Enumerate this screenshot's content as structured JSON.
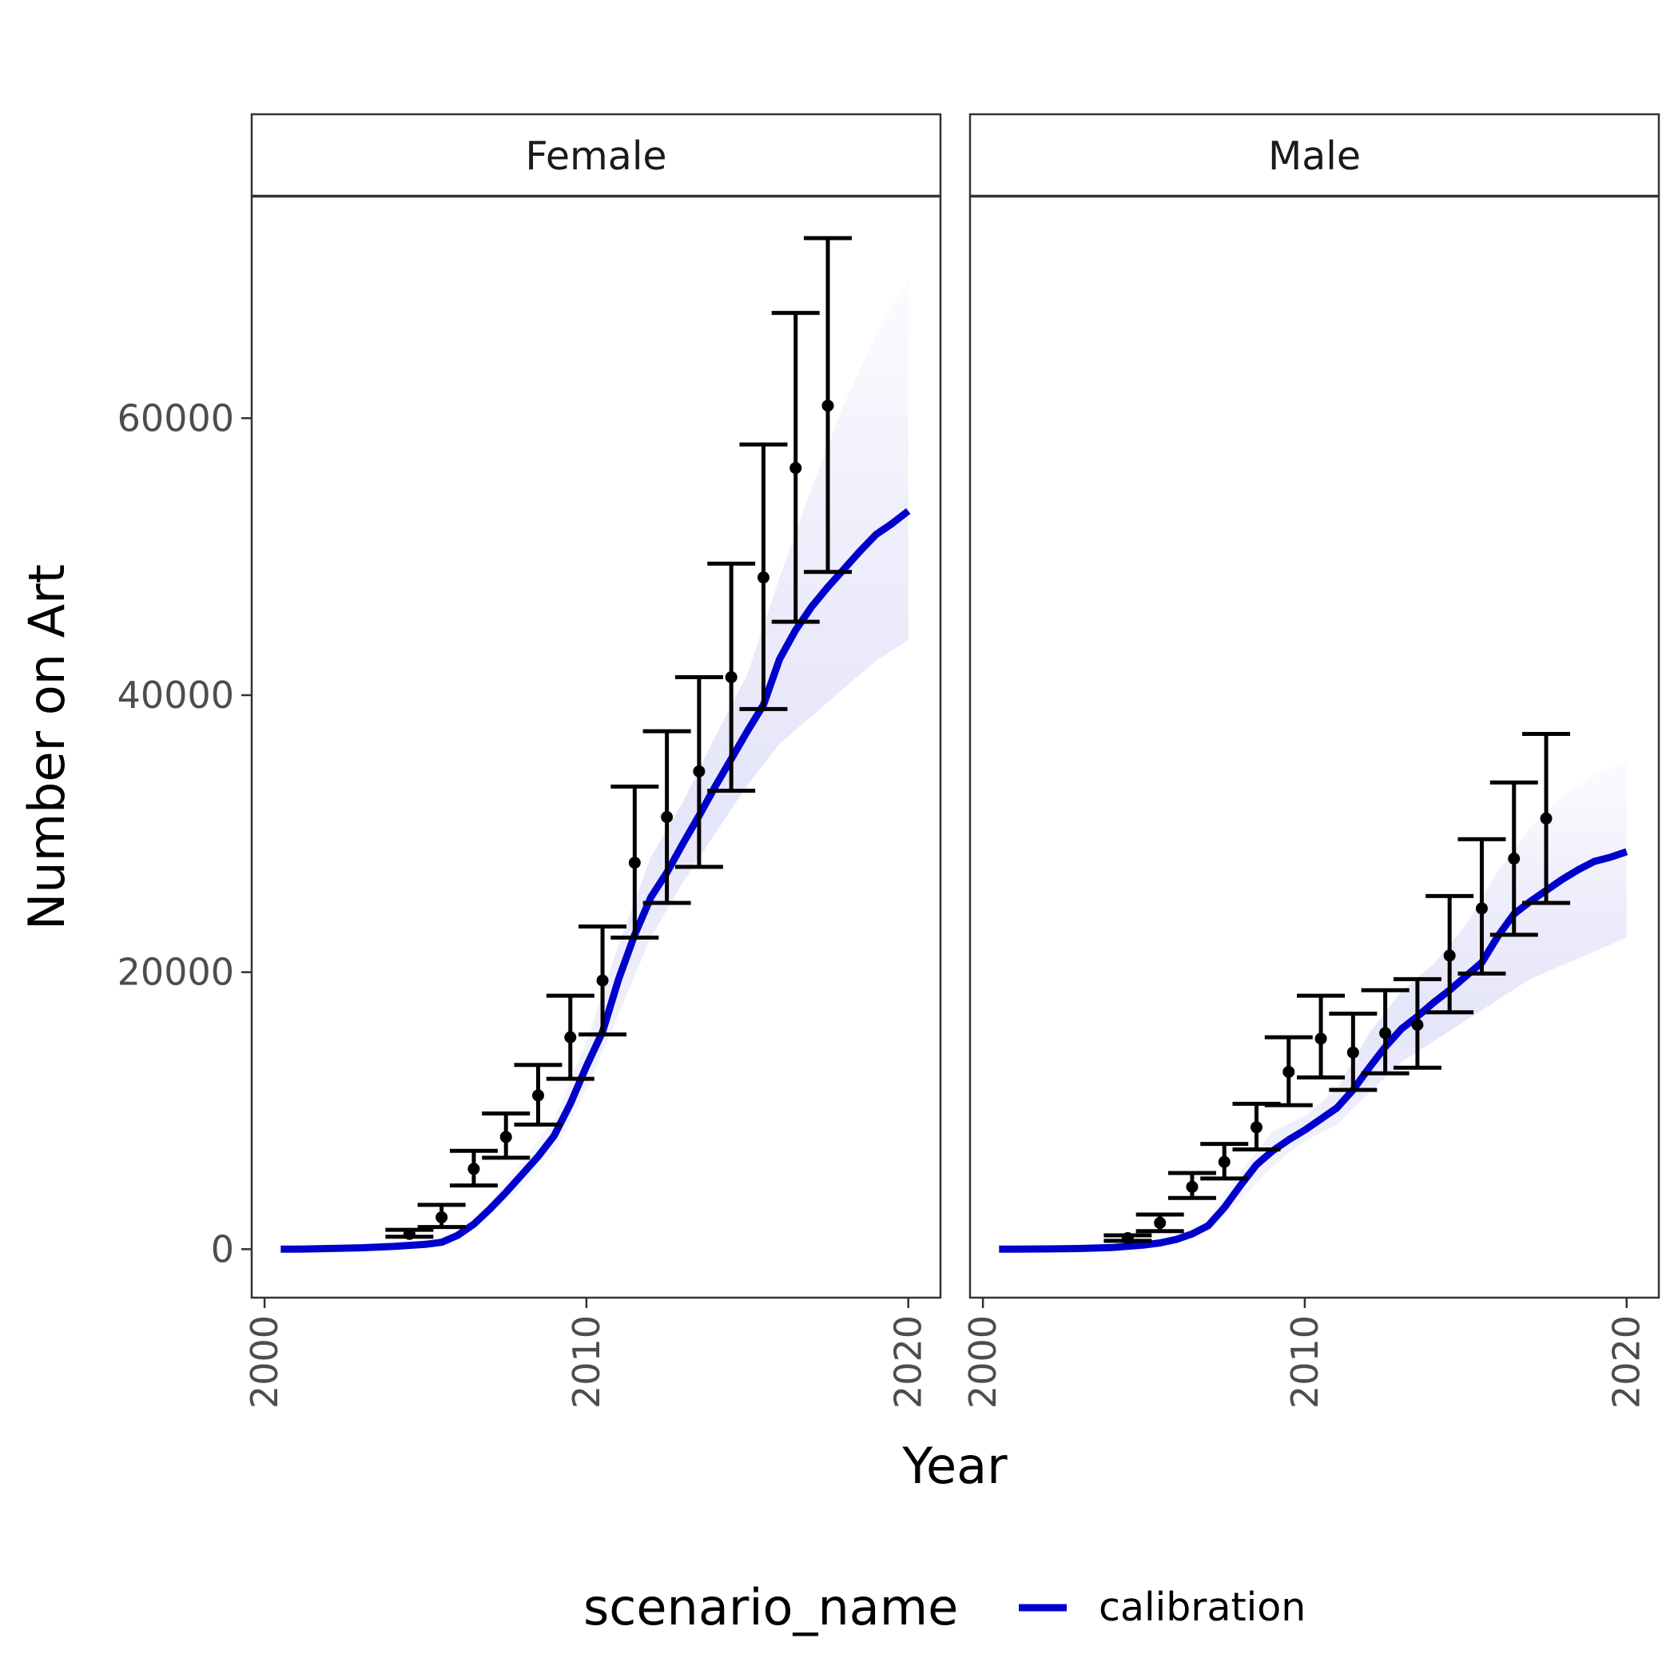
{
  "chart_data": {
    "type": "line",
    "xlabel": "Year",
    "ylabel": "Number on Art",
    "xlim": [
      1999.6,
      2021.0
    ],
    "ylim": [
      -3500,
      76000
    ],
    "x_ticks": [
      2000,
      2010,
      2020
    ],
    "y_ticks": [
      0,
      20000,
      40000,
      60000
    ],
    "y_tick_labels": [
      "0",
      "20000",
      "40000",
      "60000"
    ],
    "x_tick_labels": [
      "2000",
      "2010",
      "2020"
    ],
    "grid": false,
    "legend": {
      "title": "scenario_name",
      "position": "bottom",
      "entries": [
        {
          "label": "calibration",
          "color": "#0000CD"
        }
      ]
    },
    "colors": {
      "calibration": "#0000CD",
      "uncertainty": "#0000CD",
      "observed": "#000000"
    },
    "facets": [
      {
        "label": "Female",
        "calibration": {
          "x": [
            2000.5,
            2001,
            2002,
            2003,
            2004,
            2005,
            2005.5,
            2006,
            2006.5,
            2007,
            2007.5,
            2008,
            2008.5,
            2009,
            2009.5,
            2010,
            2010.5,
            2011,
            2011.5,
            2012,
            2012.5,
            2013,
            2013.5,
            2014,
            2014.5,
            2015,
            2015.5,
            2016,
            2016.5,
            2017,
            2017.5,
            2018,
            2018.5,
            2019,
            2019.5,
            2020
          ],
          "y": [
            0,
            0,
            50,
            100,
            200,
            350,
            500,
            1000,
            1800,
            2900,
            4100,
            5400,
            6700,
            8200,
            10500,
            13200,
            15700,
            19500,
            22700,
            25400,
            27200,
            29300,
            31300,
            33400,
            35400,
            37400,
            39300,
            42600,
            44700,
            46400,
            47800,
            49100,
            50400,
            51600,
            52400,
            53300
          ]
        },
        "uncertainty": {
          "x": [
            2000.5,
            2003,
            2005,
            2006,
            2007,
            2008,
            2009,
            2010,
            2011,
            2012,
            2013,
            2014,
            2015,
            2016,
            2017,
            2018,
            2019,
            2020
          ],
          "lower": [
            0,
            80,
            250,
            700,
            2400,
            4500,
            7000,
            11500,
            17000,
            22500,
            26500,
            30000,
            33500,
            36500,
            38500,
            40500,
            42500,
            44000
          ],
          "upper": [
            0,
            150,
            450,
            1400,
            3400,
            6400,
            9400,
            15000,
            22000,
            28300,
            32300,
            37000,
            41500,
            48500,
            55000,
            61000,
            66000,
            70000
          ]
        },
        "observed": {
          "x": [
            2004.5,
            2005.5,
            2006.5,
            2007.5,
            2008.5,
            2009.5,
            2010.5,
            2011.5,
            2012.5,
            2013.5,
            2014.5,
            2015.5,
            2016.5,
            2017.5
          ],
          "y": [
            1100,
            2300,
            5800,
            8100,
            11100,
            15300,
            19400,
            27900,
            31200,
            34500,
            41300,
            48500,
            56400,
            60900
          ],
          "lower": [
            900,
            1600,
            4600,
            6600,
            9000,
            12300,
            15500,
            22500,
            25000,
            27600,
            33100,
            39000,
            45300,
            48900
          ],
          "upper": [
            1400,
            3200,
            7100,
            9800,
            13300,
            18300,
            23300,
            33400,
            37400,
            41300,
            49500,
            58100,
            67600,
            73000
          ]
        }
      },
      {
        "label": "Male",
        "calibration": {
          "x": [
            2000.5,
            2001,
            2002,
            2003,
            2004,
            2005,
            2005.5,
            2006,
            2006.5,
            2007,
            2007.5,
            2008,
            2008.5,
            2009,
            2009.5,
            2010,
            2010.5,
            2011,
            2011.5,
            2012,
            2012.5,
            2013,
            2013.5,
            2014,
            2014.5,
            2015,
            2015.5,
            2016,
            2016.5,
            2017,
            2017.5,
            2018,
            2018.5,
            2019,
            2019.5,
            2020
          ],
          "y": [
            0,
            0,
            20,
            50,
            120,
            300,
            450,
            700,
            1100,
            1700,
            3000,
            4600,
            6100,
            7100,
            7900,
            8600,
            9400,
            10200,
            11500,
            13100,
            14600,
            15900,
            16800,
            17800,
            18700,
            19700,
            20700,
            22600,
            24200,
            25100,
            25900,
            26700,
            27400,
            28000,
            28300,
            28700
          ]
        },
        "uncertainty": {
          "x": [
            2000.5,
            2003,
            2005,
            2006,
            2007,
            2008,
            2009,
            2010,
            2011,
            2012,
            2013,
            2014,
            2015,
            2016,
            2017,
            2018,
            2019,
            2020
          ],
          "lower": [
            0,
            30,
            200,
            500,
            1300,
            3500,
            6000,
            7800,
            9000,
            11300,
            13500,
            15000,
            16500,
            18000,
            19500,
            20500,
            21500,
            22500
          ],
          "upper": [
            0,
            80,
            400,
            1000,
            2200,
            5600,
            8500,
            9600,
            11600,
            15600,
            18600,
            20600,
            23400,
            27300,
            30400,
            32700,
            34200,
            35300
          ]
        },
        "observed": {
          "x": [
            2004.5,
            2005.5,
            2006.5,
            2007.5,
            2008.5,
            2009.5,
            2010.5,
            2011.5,
            2012.5,
            2013.5,
            2014.5,
            2015.5,
            2016.5,
            2017.5
          ],
          "y": [
            800,
            1900,
            4500,
            6300,
            8800,
            12800,
            15200,
            14200,
            15600,
            16200,
            21200,
            24600,
            28200,
            31100
          ],
          "lower": [
            600,
            1300,
            3700,
            5100,
            7200,
            10400,
            12400,
            11500,
            12700,
            13100,
            17100,
            19900,
            22700,
            25000
          ],
          "upper": [
            1000,
            2500,
            5500,
            7600,
            10500,
            15300,
            18300,
            17000,
            18700,
            19500,
            25500,
            29600,
            33700,
            37200
          ]
        }
      }
    ]
  }
}
